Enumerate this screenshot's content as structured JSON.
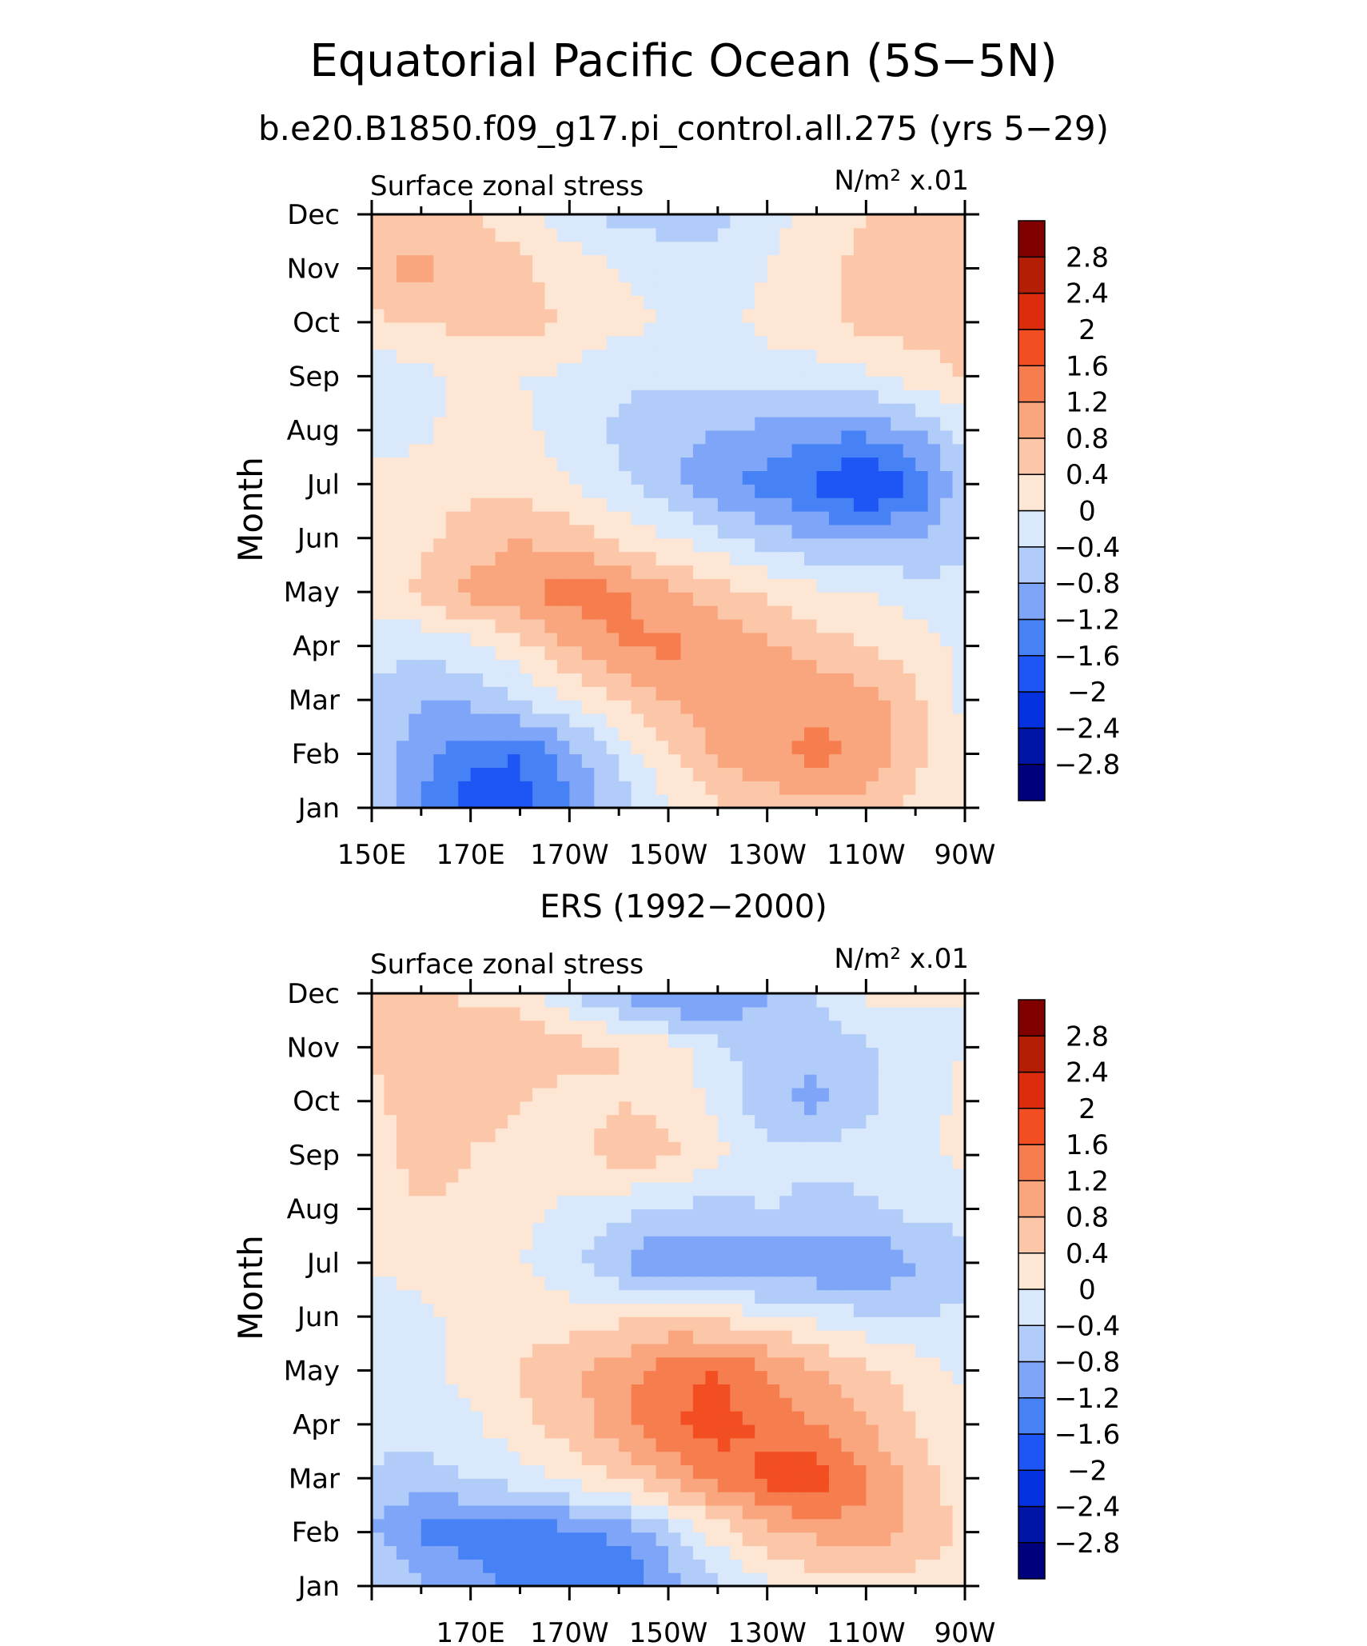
{
  "title": "Equatorial Pacific Ocean (5S−5N)",
  "subtitle": "b.e20.B1850.f09_g17.pi_control.all.275 (yrs 5−29)",
  "label_bar": [
    "−2.8",
    "−2.4",
    "−2",
    "−1.6",
    "−1.2",
    "−0.8",
    "−0.4",
    "0",
    "0.4",
    "0.8",
    "1.2",
    "1.6",
    "2",
    "2.4",
    "2.8"
  ],
  "colors": [
    "#00007d",
    "#0014a5",
    "#0532e1",
    "#1e55f5",
    "#4682f5",
    "#7ea5f7",
    "#b2ccf9",
    "#d9e8fb",
    "#fde6d4",
    "#fcc6a8",
    "#f9a67f",
    "#f67d4e",
    "#f34d22",
    "#dd2c0c",
    "#b31e04",
    "#800000"
  ],
  "chart_data": [
    {
      "type": "heatmap",
      "panel_title": "",
      "left_string": "Surface zonal stress",
      "right_string": "N/m² x.01",
      "ylabel": "Month",
      "y_ticks": [
        "Jan",
        "Feb",
        "Mar",
        "Apr",
        "May",
        "Jun",
        "Jul",
        "Aug",
        "Sep",
        "Oct",
        "Nov",
        "Dec"
      ],
      "x_ticks": [
        "150E",
        "170E",
        "170W",
        "150W",
        "130W",
        "110W",
        "90W"
      ],
      "x_range": [
        150,
        270
      ],
      "x_tick_values": [
        150,
        170,
        190,
        210,
        230,
        250,
        270
      ],
      "x": [
        150,
        160,
        170,
        180,
        190,
        200,
        210,
        220,
        230,
        240,
        250,
        260,
        270
      ],
      "levels": [
        -2.8,
        -2.4,
        -2.0,
        -1.6,
        -1.2,
        -0.8,
        -0.4,
        0,
        0.4,
        0.8,
        1.2,
        1.6,
        2.0,
        2.4,
        2.8
      ],
      "z": [
        [
          -0.4,
          -1.2,
          -1.9,
          -1.8,
          -1.2,
          -0.6,
          -0.1,
          0.3,
          0.5,
          0.7,
          0.6,
          0.3,
          0.0
        ],
        [
          -0.6,
          -1.0,
          -1.5,
          -1.6,
          -1.0,
          -0.3,
          0.4,
          0.9,
          1.1,
          1.3,
          1.1,
          0.5,
          0.0
        ],
        [
          -0.5,
          -0.8,
          -0.7,
          -0.4,
          0.0,
          0.4,
          0.8,
          1.0,
          1.1,
          1.1,
          1.0,
          0.5,
          -0.1
        ],
        [
          -0.2,
          -0.3,
          -0.1,
          0.3,
          0.8,
          1.2,
          1.3,
          1.1,
          0.9,
          0.6,
          0.4,
          0.2,
          -0.1
        ],
        [
          0.2,
          0.5,
          0.9,
          1.1,
          1.4,
          1.3,
          0.9,
          0.6,
          0.3,
          0.1,
          0.0,
          -0.2,
          -0.3
        ],
        [
          0.2,
          0.3,
          0.6,
          0.8,
          0.6,
          0.3,
          0.0,
          -0.3,
          -0.6,
          -0.8,
          -0.9,
          -0.8,
          -0.5
        ],
        [
          0.1,
          0.2,
          0.3,
          0.2,
          0.0,
          -0.3,
          -0.7,
          -1.1,
          -1.4,
          -1.7,
          -2.1,
          -1.6,
          -0.5
        ],
        [
          -0.1,
          -0.1,
          0.2,
          0.1,
          -0.2,
          -0.5,
          -0.7,
          -0.8,
          -0.9,
          -1.1,
          -1.1,
          -0.8,
          -0.3
        ],
        [
          -0.3,
          -0.1,
          0.1,
          0.0,
          -0.1,
          -0.3,
          -0.3,
          -0.3,
          -0.2,
          -0.2,
          -0.1,
          0.2,
          0.4
        ],
        [
          0.3,
          0.4,
          0.5,
          0.5,
          0.4,
          0.1,
          0.0,
          -0.1,
          0.1,
          0.3,
          0.5,
          0.6,
          0.6
        ],
        [
          0.8,
          0.9,
          0.7,
          0.5,
          0.2,
          0.0,
          -0.2,
          -0.3,
          0.0,
          0.3,
          0.5,
          0.6,
          0.5
        ],
        [
          0.5,
          0.5,
          0.4,
          0.2,
          -0.2,
          -0.5,
          -0.6,
          -0.5,
          -0.2,
          0.2,
          0.4,
          0.5,
          0.4
        ]
      ]
    },
    {
      "type": "heatmap",
      "panel_title": "ERS (1992−2000)",
      "left_string": "Surface zonal stress",
      "right_string": "N/m² x.01",
      "ylabel": "Month",
      "y_ticks": [
        "Jan",
        "Feb",
        "Mar",
        "Apr",
        "May",
        "Jun",
        "Jul",
        "Aug",
        "Sep",
        "Oct",
        "Nov",
        "Dec"
      ],
      "x_ticks": [
        "170E",
        "170W",
        "150W",
        "130W",
        "110W",
        "90W"
      ],
      "x_range": [
        150,
        270
      ],
      "x_tick_values": [
        170,
        190,
        210,
        230,
        250,
        270
      ],
      "x": [
        150,
        160,
        170,
        180,
        190,
        200,
        210,
        220,
        230,
        240,
        250,
        260,
        270
      ],
      "levels": [
        -2.8,
        -2.4,
        -2.0,
        -1.6,
        -1.2,
        -0.8,
        -0.4,
        0,
        0.4,
        0.8,
        1.2,
        1.6,
        2.0,
        2.4,
        2.8
      ],
      "z": [
        [
          -0.3,
          -0.8,
          -1.0,
          -1.3,
          -1.5,
          -1.6,
          -1.0,
          -0.5,
          -0.1,
          0.2,
          0.3,
          0.2,
          0.1
        ],
        [
          -0.8,
          -1.3,
          -1.4,
          -1.5,
          -1.3,
          -1.1,
          -0.6,
          0.2,
          0.7,
          0.9,
          1.0,
          0.7,
          0.3
        ],
        [
          -0.5,
          -0.6,
          -0.4,
          -0.2,
          0.1,
          0.4,
          0.9,
          1.3,
          1.7,
          1.9,
          1.3,
          0.6,
          0.2
        ],
        [
          -0.2,
          -0.2,
          -0.1,
          0.3,
          0.6,
          1.1,
          1.5,
          1.8,
          1.5,
          1.2,
          0.8,
          0.4,
          0.1
        ],
        [
          -0.3,
          -0.1,
          0.1,
          0.4,
          0.7,
          1.0,
          1.5,
          1.6,
          1.2,
          0.8,
          0.5,
          0.2,
          -0.1
        ],
        [
          -0.4,
          -0.1,
          0.1,
          0.3,
          0.2,
          0.3,
          0.4,
          0.3,
          0.1,
          -0.1,
          -0.3,
          -0.4,
          -0.3
        ],
        [
          0.1,
          0.2,
          0.2,
          0.0,
          -0.3,
          -0.8,
          -1.3,
          -1.2,
          -1.3,
          -1.2,
          -1.3,
          -0.8,
          -0.6
        ],
        [
          0.2,
          0.4,
          0.3,
          0.1,
          -0.1,
          -0.3,
          -0.5,
          -0.5,
          -0.4,
          -0.5,
          -0.5,
          -0.3,
          -0.2
        ],
        [
          0.3,
          0.5,
          0.4,
          0.3,
          0.3,
          0.6,
          0.5,
          0.1,
          -0.3,
          -0.3,
          -0.2,
          -0.1,
          0.1
        ],
        [
          0.3,
          0.6,
          0.5,
          0.4,
          0.2,
          0.4,
          0.3,
          -0.1,
          -0.7,
          -0.9,
          -0.5,
          -0.2,
          0.1
        ],
        [
          0.4,
          0.7,
          0.6,
          0.8,
          0.6,
          0.4,
          0.2,
          -0.3,
          -0.6,
          -0.7,
          -0.5,
          -0.2,
          0.0
        ],
        [
          0.4,
          0.6,
          0.3,
          0.2,
          -0.4,
          -0.9,
          -1.3,
          -1.3,
          -0.8,
          -0.3,
          0.1,
          0.1,
          0.0
        ]
      ]
    }
  ]
}
